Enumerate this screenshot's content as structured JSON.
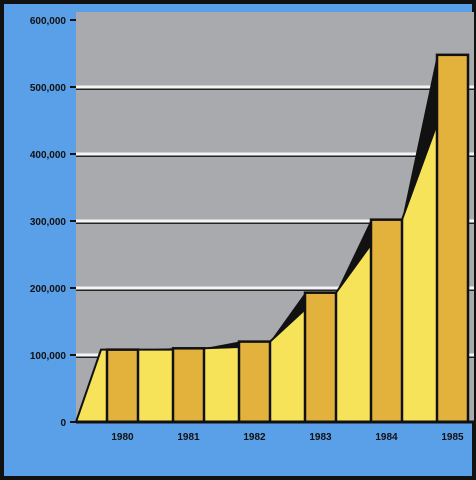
{
  "chart_data": {
    "type": "bar",
    "categories": [
      "1980",
      "1981",
      "1982",
      "1983",
      "1984",
      "1985"
    ],
    "values": [
      108000,
      110000,
      120000,
      193000,
      302000,
      548000
    ],
    "transition_tops": [
      108000,
      112000,
      168000,
      265000,
      445000
    ],
    "ylim": [
      0,
      600000
    ],
    "yticks": [
      0,
      100000,
      200000,
      300000,
      400000,
      500000,
      600000
    ],
    "ytick_labels": [
      "0",
      "100,000",
      "200,000",
      "300,000",
      "400,000",
      "500,000",
      "600,000"
    ],
    "grid": true,
    "colors": {
      "frame": "#5aa0e8",
      "plot_bg": "#a9aaae",
      "gridline": "#f4f4f4",
      "bar": "#e2b23c",
      "ramp": "#f6e35a",
      "outline": "#111111"
    }
  }
}
